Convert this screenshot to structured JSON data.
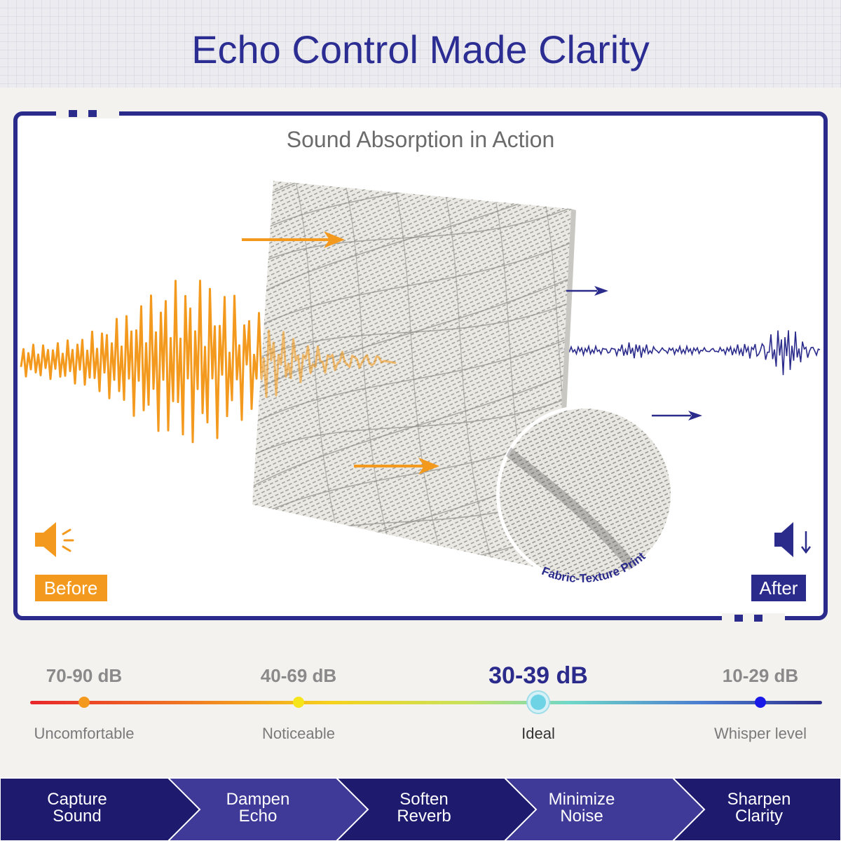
{
  "header": {
    "title": "Echo Control Made Clarity"
  },
  "panel": {
    "subtitle": "Sound Absorption in Action",
    "before": "Before",
    "after": "After",
    "callout": "Fabric-Texture Print"
  },
  "scale": {
    "levels": [
      {
        "range": "70-90 dB",
        "label": "Uncomfortable"
      },
      {
        "range": "40-69 dB",
        "label": "Noticeable"
      },
      {
        "range": "30-39 dB",
        "label": "Ideal"
      },
      {
        "range": "10-29 dB",
        "label": "Whisper level"
      }
    ]
  },
  "steps": [
    [
      "Capture",
      "Sound"
    ],
    [
      "Dampen",
      "Echo"
    ],
    [
      "Soften",
      "Reverb"
    ],
    [
      "Minimize",
      "Noise"
    ],
    [
      "Sharpen",
      "Clarity"
    ]
  ]
}
